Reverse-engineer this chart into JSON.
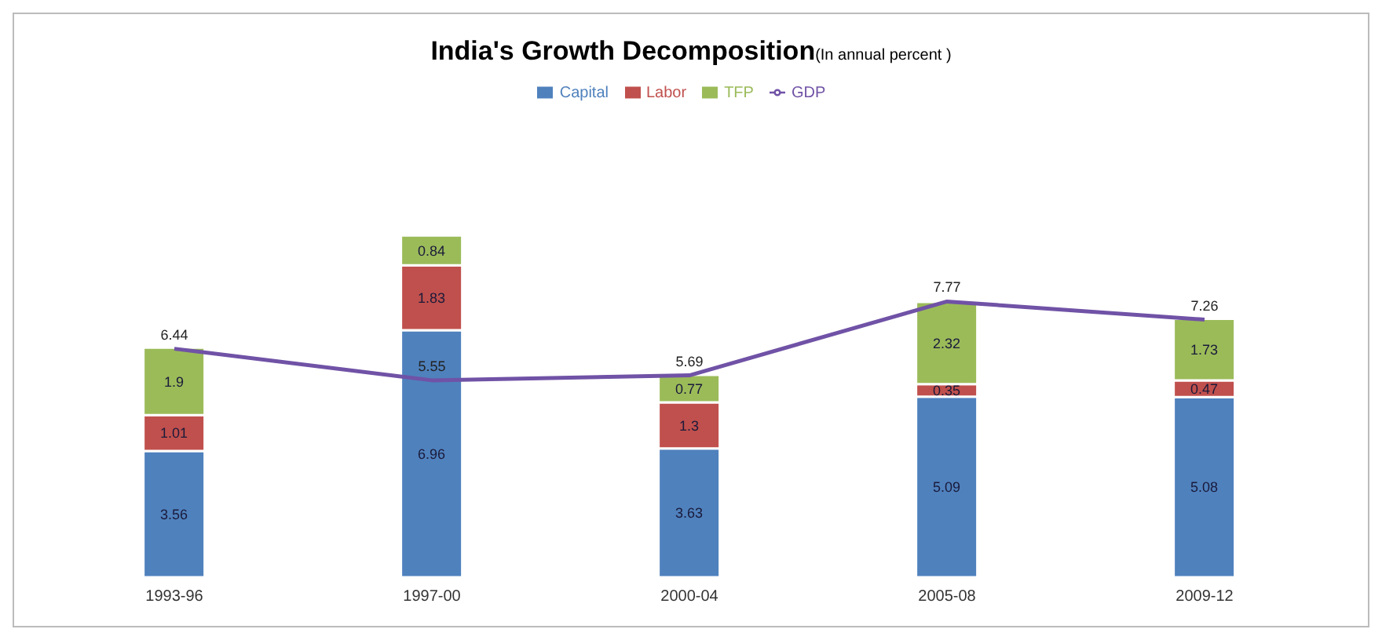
{
  "chart_data": {
    "type": "bar",
    "title": "India's Growth Decomposition",
    "subtitle": "(In annual percent )",
    "categories": [
      "1993-96",
      "1997-00",
      "2000-04",
      "2005-08",
      "2009-12"
    ],
    "stacked": true,
    "data_labels": true,
    "legend": "top",
    "series": [
      {
        "name": "Capital",
        "color": "#4f81bd",
        "values": [
          3.56,
          6.96,
          3.63,
          5.09,
          5.08
        ]
      },
      {
        "name": "Labor",
        "color": "#c0504d",
        "values": [
          1.01,
          1.83,
          1.3,
          0.35,
          0.47
        ]
      },
      {
        "name": "TFP",
        "color": "#9bbb59",
        "values": [
          1.9,
          0.84,
          0.77,
          2.32,
          1.73
        ]
      },
      {
        "name": "GDP",
        "type": "line",
        "color": "#7052a6",
        "values": [
          6.44,
          5.55,
          5.69,
          7.77,
          7.26
        ]
      }
    ]
  }
}
